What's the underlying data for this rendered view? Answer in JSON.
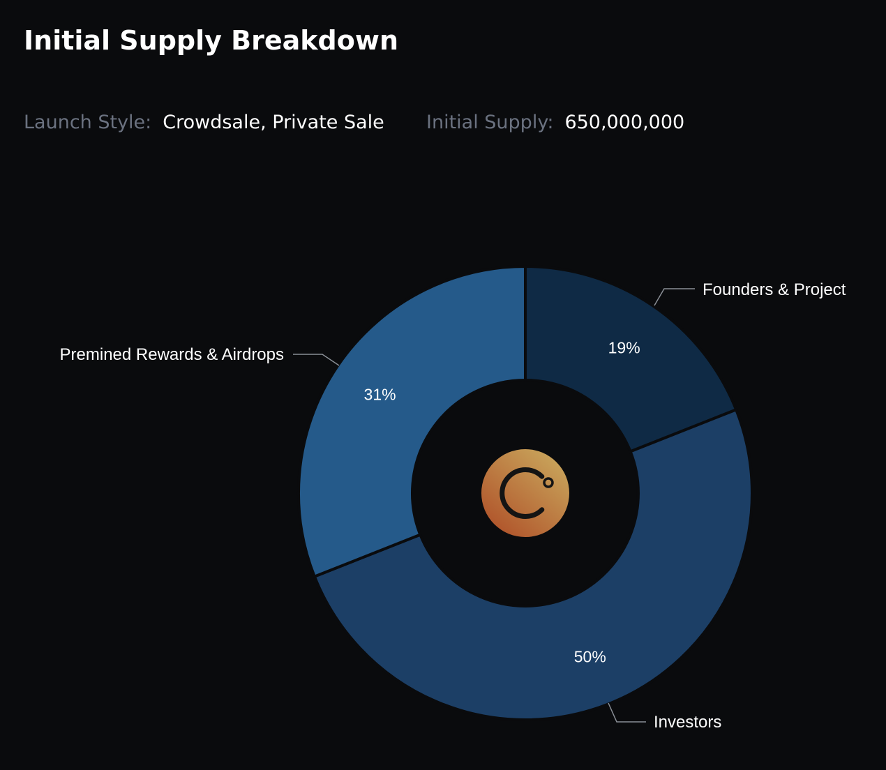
{
  "header": {
    "title": "Initial Supply Breakdown"
  },
  "meta": {
    "launch_style_label": "Launch Style:",
    "launch_style_value": "Crowdsale, Private Sale",
    "initial_supply_label": "Initial Supply:",
    "initial_supply_value": "650,000,000"
  },
  "center_logo": {
    "icon": "celsius-logo-icon",
    "colors": [
      "#c8a35a",
      "#b0532a"
    ]
  },
  "chart_data": {
    "type": "pie",
    "donut": true,
    "title": "",
    "categories": [
      "Founders & Project",
      "Investors",
      "Premined Rewards & Airdrops"
    ],
    "values": [
      19,
      50,
      31
    ],
    "labels": [
      "19%",
      "50%",
      "31%"
    ],
    "colors": [
      "#0f2a45",
      "#1c3f66",
      "#255a8a"
    ]
  }
}
